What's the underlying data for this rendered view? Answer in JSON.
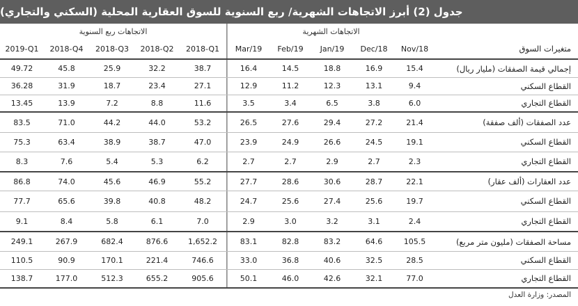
{
  "title": "جدول (2) أبرز الاتجاهات الشهرية/ ربع السنوية للسوق العقارية المحلية (السكني والتجاري)",
  "groups": {
    "quarterly": "الاتجاهات ربع السنوية",
    "monthly": "الاتجاهات الشهرية"
  },
  "header": {
    "label": "متغيرات السوق",
    "quarters": [
      "2019-Q1",
      "2018-Q4",
      "2018-Q3",
      "2018-Q2",
      "2018-Q1"
    ],
    "months": [
      "Mar/19",
      "Feb/19",
      "Jan/19",
      "Dec/18",
      "Nov/18"
    ]
  },
  "rows": [
    {
      "label": "إجمالي قيمة الصفقات (مليار ريال)",
      "q": [
        "49.72",
        "45.8",
        "25.9",
        "32.2",
        "38.7"
      ],
      "m": [
        "16.4",
        "14.5",
        "18.8",
        "16.9",
        "15.4"
      ]
    },
    {
      "label": "القطاع السكني",
      "q": [
        "36.28",
        "31.9",
        "18.7",
        "23.4",
        "27.1"
      ],
      "m": [
        "12.9",
        "11.2",
        "12.3",
        "13.1",
        "9.4"
      ]
    },
    {
      "label": "القطاع التجاري",
      "q": [
        "13.45",
        "13.9",
        "7.2",
        "8.8",
        "11.6"
      ],
      "m": [
        "3.5",
        "3.4",
        "6.5",
        "3.8",
        "6.0"
      ]
    },
    {
      "label": "عدد الصفقات (ألف صفقة)",
      "q": [
        "83.5",
        "71.0",
        "44.2",
        "44.0",
        "53.2"
      ],
      "m": [
        "26.5",
        "27.6",
        "29.4",
        "27.2",
        "21.4"
      ]
    },
    {
      "label": "القطاع السكني",
      "q": [
        "75.3",
        "63.4",
        "38.9",
        "38.7",
        "47.0"
      ],
      "m": [
        "23.9",
        "24.9",
        "26.6",
        "24.5",
        "19.1"
      ]
    },
    {
      "label": "القطاع التجاري",
      "q": [
        "8.3",
        "7.6",
        "5.4",
        "5.3",
        "6.2"
      ],
      "m": [
        "2.7",
        "2.7",
        "2.9",
        "2.7",
        "2.3"
      ]
    },
    {
      "label": "عدد العقارات (ألف عقار)",
      "q": [
        "86.8",
        "74.0",
        "45.6",
        "46.9",
        "55.2"
      ],
      "m": [
        "27.7",
        "28.6",
        "30.6",
        "28.7",
        "22.1"
      ]
    },
    {
      "label": "القطاع السكني",
      "q": [
        "77.7",
        "65.6",
        "39.8",
        "40.8",
        "48.2"
      ],
      "m": [
        "24.7",
        "25.6",
        "27.4",
        "25.6",
        "19.7"
      ]
    },
    {
      "label": "القطاع التجاري",
      "q": [
        "9.1",
        "8.4",
        "5.8",
        "6.1",
        "7.0"
      ],
      "m": [
        "2.9",
        "3.0",
        "3.2",
        "3.1",
        "2.4"
      ]
    },
    {
      "label": "مساحة الصفقات (مليون متر مربع)",
      "q": [
        "249.1",
        "267.9",
        "682.4",
        "876.6",
        "1,652.2"
      ],
      "m": [
        "83.1",
        "82.8",
        "83.2",
        "64.6",
        "105.5"
      ]
    },
    {
      "label": "القطاع السكني",
      "q": [
        "110.5",
        "90.9",
        "170.1",
        "221.4",
        "746.6"
      ],
      "m": [
        "33.0",
        "36.8",
        "40.6",
        "32.5",
        "28.5"
      ]
    },
    {
      "label": "القطاع التجاري",
      "q": [
        "138.7",
        "177.0",
        "512.3",
        "655.2",
        "905.6"
      ],
      "m": [
        "50.1",
        "46.0",
        "42.6",
        "32.1",
        "77.0"
      ]
    }
  ],
  "source": "المصدر: وزارة العدل"
}
